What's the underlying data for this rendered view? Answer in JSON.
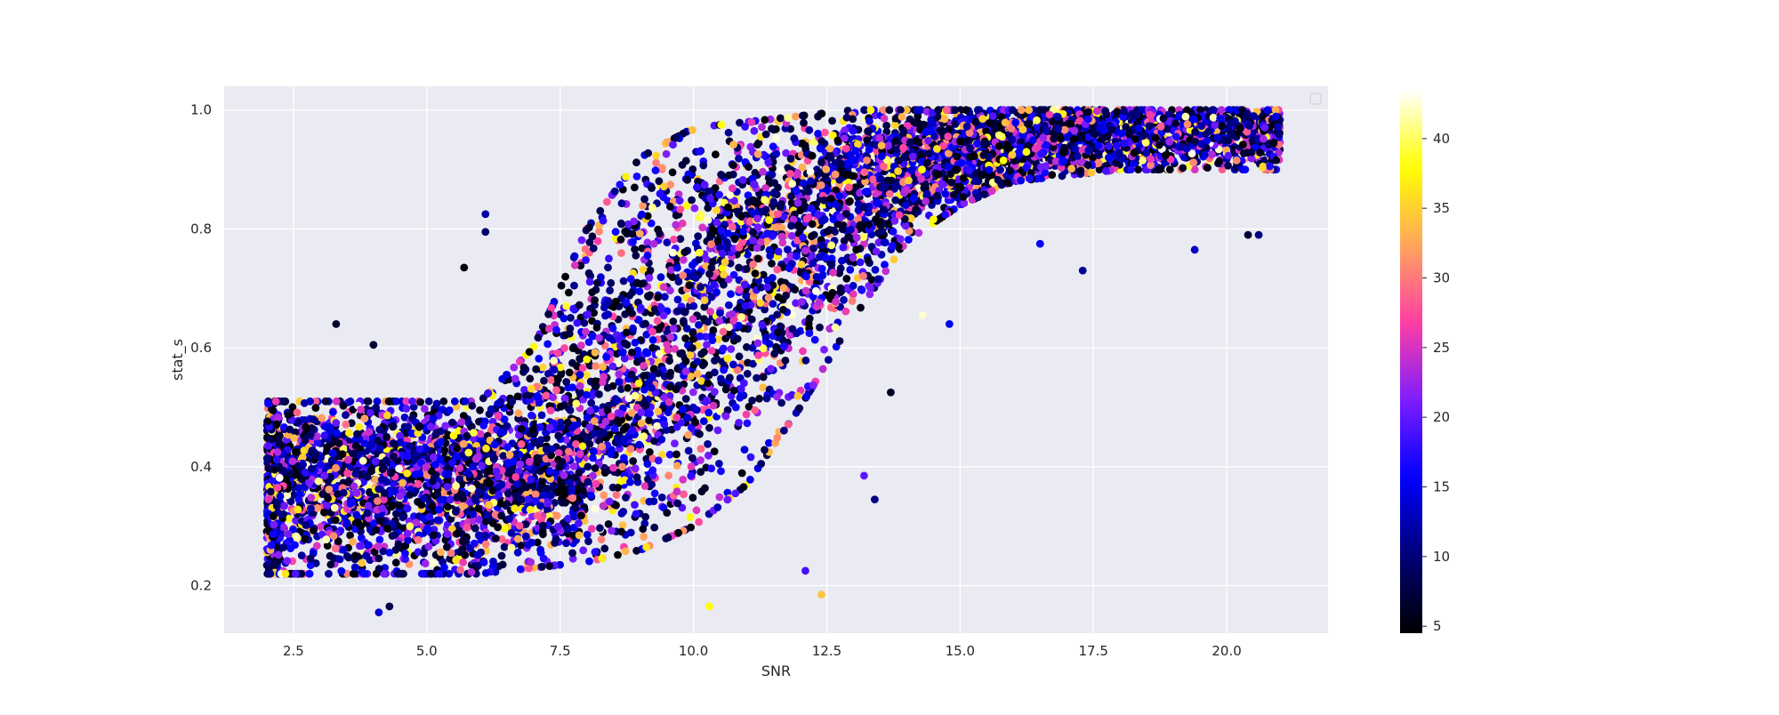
{
  "chart_data": {
    "type": "scatter",
    "title": "",
    "xlabel": "SNR",
    "ylabel": "stat_s",
    "xlim": [
      1.2,
      21.9
    ],
    "ylim": [
      0.12,
      1.04
    ],
    "xticks": [
      2.5,
      5.0,
      7.5,
      10.0,
      12.5,
      15.0,
      17.5,
      20.0
    ],
    "xtick_labels": [
      "2.5",
      "5.0",
      "7.5",
      "10.0",
      "12.5",
      "15.0",
      "17.5",
      "20.0"
    ],
    "yticks": [
      0.2,
      0.4,
      0.6,
      0.8,
      1.0
    ],
    "ytick_labels": [
      "0.2",
      "0.4",
      "0.6",
      "0.8",
      "1.0"
    ],
    "grid": true,
    "legend": "top-right (empty)",
    "background_color": "#eaeaf2",
    "grid_color": "#ffffff",
    "colorbar": {
      "colormap": "gnuplot2",
      "range": [
        4.5,
        43.5
      ],
      "ticks": [
        5,
        10,
        15,
        20,
        25,
        30,
        35,
        40
      ],
      "tick_labels": [
        "5",
        "10",
        "15",
        "20",
        "25",
        "30",
        "35",
        "40"
      ],
      "stops": [
        "#000000",
        "#000078",
        "#0000ff",
        "#7d1dff",
        "#ff3ea4",
        "#ffa55c",
        "#ffff00",
        "#ffffff"
      ]
    },
    "color_variable_range": [
      4.5,
      43.5
    ],
    "x_range": [
      2.0,
      21.0
    ],
    "point_count_estimate": 9000,
    "trend": {
      "description": "stat_s is roughly 0.25-0.50 for SNR below ~7, rises steeply between SNR ~7 and ~14, and saturates near 0.9-1.0 for SNR above ~15",
      "snr": [
        2.0,
        4.0,
        6.0,
        7.0,
        8.0,
        9.0,
        10.0,
        11.0,
        12.0,
        13.0,
        14.0,
        15.0,
        16.0,
        18.0,
        21.0
      ],
      "median": [
        0.38,
        0.38,
        0.38,
        0.4,
        0.46,
        0.55,
        0.65,
        0.75,
        0.82,
        0.87,
        0.91,
        0.93,
        0.95,
        0.96,
        0.97
      ],
      "lower": [
        0.22,
        0.22,
        0.22,
        0.23,
        0.24,
        0.26,
        0.3,
        0.37,
        0.5,
        0.65,
        0.78,
        0.84,
        0.88,
        0.9,
        0.9
      ],
      "upper": [
        0.51,
        0.51,
        0.51,
        0.6,
        0.8,
        0.92,
        0.97,
        0.98,
        0.99,
        1.0,
        1.0,
        1.0,
        1.0,
        1.0,
        1.0
      ]
    },
    "outliers": [
      {
        "x": 3.3,
        "y": 0.64
      },
      {
        "x": 4.0,
        "y": 0.605
      },
      {
        "x": 4.1,
        "y": 0.155
      },
      {
        "x": 4.3,
        "y": 0.165
      },
      {
        "x": 5.7,
        "y": 0.735
      },
      {
        "x": 6.1,
        "y": 0.795
      },
      {
        "x": 6.1,
        "y": 0.825
      },
      {
        "x": 10.3,
        "y": 0.165
      },
      {
        "x": 12.4,
        "y": 0.185
      },
      {
        "x": 12.1,
        "y": 0.225
      },
      {
        "x": 13.4,
        "y": 0.345
      },
      {
        "x": 13.2,
        "y": 0.385
      },
      {
        "x": 13.7,
        "y": 0.525
      },
      {
        "x": 14.8,
        "y": 0.64
      },
      {
        "x": 16.5,
        "y": 0.775
      },
      {
        "x": 17.3,
        "y": 0.73
      },
      {
        "x": 19.4,
        "y": 0.765
      },
      {
        "x": 20.4,
        "y": 0.79
      },
      {
        "x": 20.6,
        "y": 0.79
      },
      {
        "x": 14.3,
        "y": 0.655
      }
    ]
  }
}
